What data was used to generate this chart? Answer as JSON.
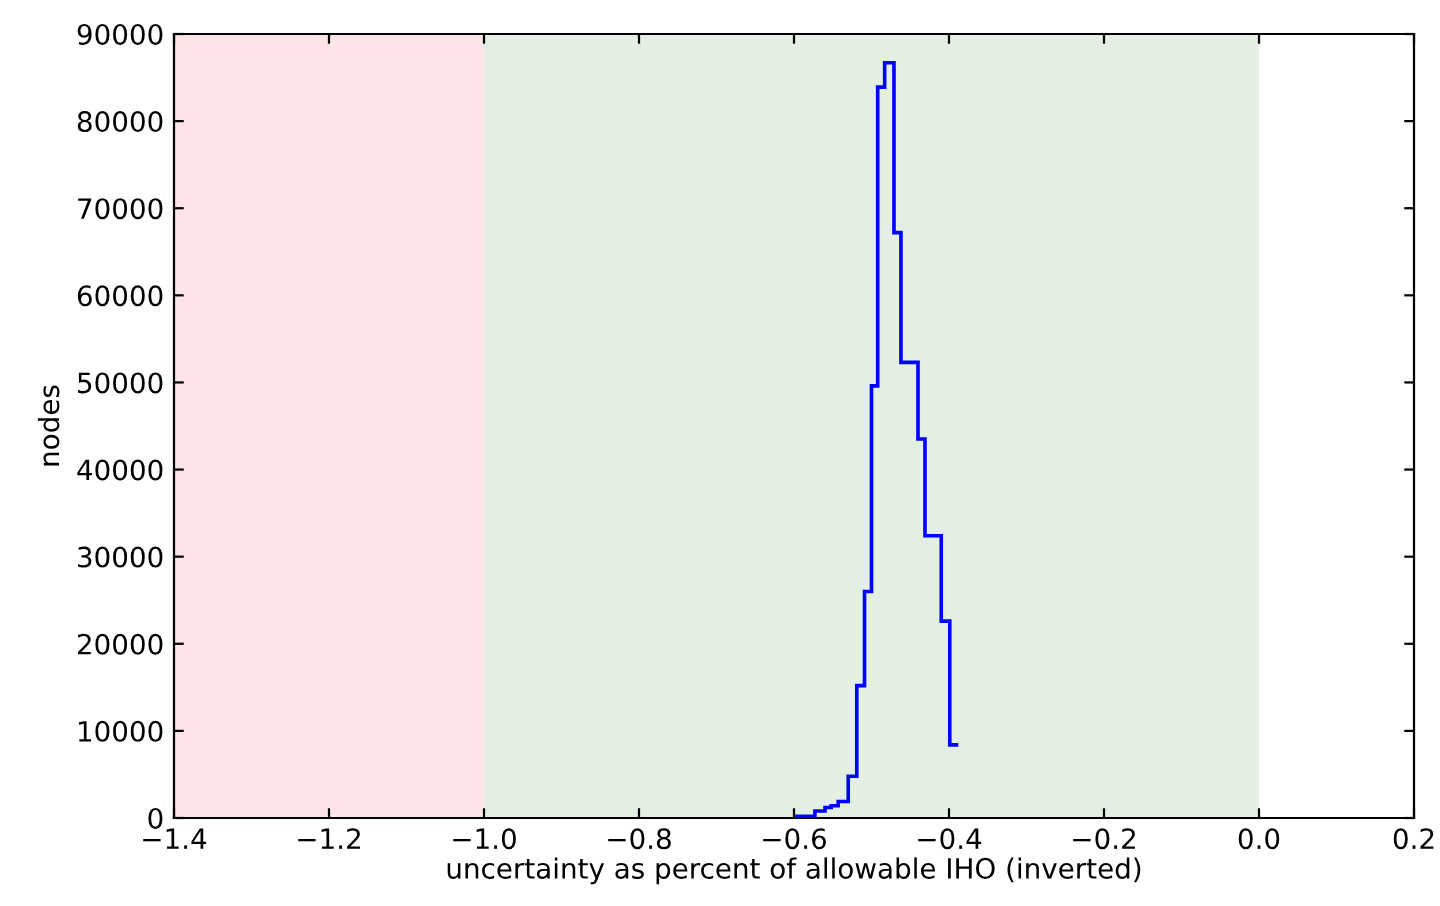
{
  "chart_data": {
    "type": "histogram",
    "xlabel": "uncertainty as percent of allowable IHO (inverted)",
    "ylabel": "nodes",
    "bins": [
      -0.599,
      -0.573,
      -0.56,
      -0.552,
      -0.543,
      -0.53,
      -0.519,
      -0.509,
      -0.5,
      -0.492,
      -0.483,
      -0.471,
      -0.462,
      -0.44,
      -0.431,
      -0.41,
      -0.399,
      -0.388
    ],
    "values": [
      200,
      800,
      1200,
      1400,
      1900,
      4800,
      15200,
      26000,
      49600,
      83900,
      86700,
      67200,
      52300,
      43500,
      32400,
      22600,
      8400
    ],
    "color": "#0000ff",
    "bands": [
      {
        "axis": "x",
        "from": -1.4,
        "to": -1.0,
        "color": "#fde4e6"
      },
      {
        "axis": "x",
        "from": -1.0,
        "to": 0.0,
        "color": "#e3efe3"
      }
    ],
    "xlim": [
      -1.4,
      0.2
    ],
    "xticks": [
      {
        "value": -1.4,
        "label": "−1.4"
      },
      {
        "value": -1.2,
        "label": "−1.2"
      },
      {
        "value": -1.0,
        "label": "−1.0"
      },
      {
        "value": -0.8,
        "label": "−0.8"
      },
      {
        "value": -0.6,
        "label": "−0.6"
      },
      {
        "value": -0.4,
        "label": "−0.4"
      },
      {
        "value": -0.2,
        "label": "−0.2"
      },
      {
        "value": 0.0,
        "label": "0.0"
      },
      {
        "value": 0.2,
        "label": "0.2"
      }
    ],
    "ylim": [
      0,
      90000
    ],
    "yticks": [
      0,
      10000,
      20000,
      30000,
      40000,
      50000,
      60000,
      70000,
      80000,
      90000
    ],
    "grid": false
  }
}
